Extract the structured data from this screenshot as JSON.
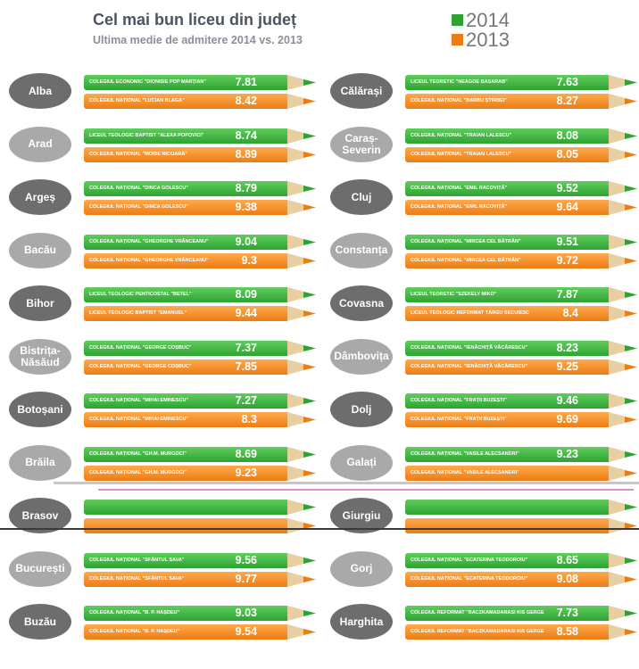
{
  "title": "Cel mai bun liceu din județ",
  "subtitle": "Ultima medie de admitere 2014 vs. 2013",
  "legend": [
    {
      "label": "2014",
      "color": "#2ea332"
    },
    {
      "label": "2013",
      "color": "#ec7d14"
    }
  ],
  "chart_data": {
    "type": "bar",
    "title": "Cel mai bun liceu din județ",
    "subtitle": "Ultima medie de admitere 2014 vs. 2013",
    "categories": [
      "Alba",
      "Arad",
      "Argeș",
      "Bacău",
      "Bihor",
      "Bistrița-Năsăud",
      "Botoșani",
      "Brăila",
      "Brasov",
      "București",
      "Buzău",
      "Călărași",
      "Caraș-Severin",
      "Cluj",
      "Constanța",
      "Covasna",
      "Dâmbovița",
      "Dolj",
      "Galați",
      "Giurgiu",
      "Gorj",
      "Harghita"
    ],
    "series": [
      {
        "name": "2014",
        "color": "#2ea332",
        "values": [
          7.81,
          8.74,
          8.79,
          9.04,
          8.09,
          7.37,
          7.27,
          8.69,
          null,
          9.56,
          9.03,
          7.63,
          8.08,
          9.52,
          9.51,
          7.87,
          8.23,
          9.46,
          9.23,
          null,
          8.65,
          7.73
        ]
      },
      {
        "name": "2013",
        "color": "#ec7d14",
        "values": [
          8.42,
          8.89,
          9.38,
          9.3,
          9.44,
          7.85,
          8.3,
          9.23,
          null,
          9.77,
          9.54,
          8.27,
          8.05,
          9.64,
          9.72,
          8.4,
          9.25,
          9.69,
          null,
          null,
          9.08,
          8.58
        ]
      }
    ],
    "value_labels": {
      "2014": [
        "7.81",
        "8.74",
        "8.79",
        "9.04",
        "8.09",
        "7.37",
        "7.27",
        "8.69",
        "",
        "9.56",
        "9.03",
        "7.63",
        "8.08",
        "9.52",
        "9.51",
        "7.87",
        "8.23",
        "9.46",
        "9.23",
        "",
        "8.65",
        "7.73"
      ],
      "2013": [
        "8.42",
        "8.89",
        "9.38",
        "9.3",
        "9.44",
        "7.85",
        "8.3",
        "9.23",
        "",
        "9.77",
        "9.54",
        "8.27",
        "8.05",
        "9.64",
        "9.72",
        "8.4",
        "9.25",
        "9.69",
        "",
        "",
        "9.08",
        "8.58"
      ]
    },
    "schools": {
      "2014": [
        "COLEGIUL ECONOMIC \"DIONISIE POP MARȚIAN\"",
        "LICEUL TEOLOGIC BAPTIST \"ALEXA POPOVICI\"",
        "COLEGIUL NAȚIONAL \"DINCA GOLESCU\"",
        "COLEGIUL NAȚIONAL \"GHEORGHE VRĂNCEANU\"",
        "LICEUL TEOLOGIC PENTICOSTAL \"BETEL\"",
        "COLEGIUL NAȚIONAL \"GEORGE COȘBUC\"",
        "COLEGIUL NAȚIONAL \"MIHAI EMINESCU\"",
        "COLEGIUL NAȚIONAL \"GH.M. MURGOCI\"",
        "",
        "COLEGIUL NAȚIONAL \"SFÂNTUL SAVA\"",
        "COLEGIUL NAȚIONAL \"B. P. HAȘDEU\"",
        "LICEUL TEORETIC \"NEAGOE BASARAB\"",
        "COLEGIUL NAȚIONAL \"TRAIAN LALESCU\"",
        "COLEGIUL NAȚIONAL \"EMIL RACOVIȚĂ\"",
        "COLEGIUL NAȚIONAL \"MIRCEA CEL BĂTRÂN\"",
        "LICEUL TEORETIC \"SZEKELY MIKO\"",
        "COLEGIUL NAȚIONAL \"IENĂCHIȚĂ VĂCĂRESCU\"",
        "COLEGIUL NAȚIONAL \"FRAȚII BUZEȘTI\"",
        "COLEGIUL NAȚIONAL \"VASILE ALECSANDRI\"",
        "",
        "COLEGIUL NAȚIONAL \"ECATERINA TEODOROIU\"",
        "COLEGIUL REFORMAT \"BACZKAMADARASI KIS GERGELY\""
      ],
      "2013": [
        "COLEGIUL NAȚIONAL \"LUCIAN BLAGA\"",
        "COLEGIUL NAȚIONAL \"MOISE NICOARĂ\"",
        "COLEGIUL NAȚIONAL \"DINCA GOLESCU\"",
        "COLEGIUL NAȚIONAL \"GHEORGHE VRĂNCEANU\"",
        "LICEUL TEOLOGIC BAPTIST \"EMANUEL\"",
        "COLEGIUL NAȚIONAL \"GEORGE COȘBUC\"",
        "COLEGIUL NAȚIONAL \"MIHAI EMINESCU\"",
        "COLEGIUL NAȚIONAL \"GH.M. MURGOCI\"",
        "",
        "COLEGIUL NAȚIONAL \"SFÂNTUL SAVA\"",
        "COLEGIUL NAȚIONAL \"B. P. HAȘDEU\"",
        "COLEGIUL NAȚIONAL \"BARBU ȘTIRBEI\"",
        "COLEGIUL NAȚIONAL \"TRAIAN LALESCU\"",
        "COLEGIUL NAȚIONAL \"EMIL RACOVIȚĂ\"",
        "COLEGIUL NAȚIONAL \"MIRCEA CEL BĂTRÂN\"",
        "LICEUL TEOLOGIC REFORMAT TÂRGU SECUIESC",
        "COLEGIUL NAȚIONAL \"IENĂCHIȚĂ VĂCĂRESCU\"",
        "COLEGIUL NAȚIONAL \"FRAȚII BUZEȘTI\"",
        "COLEGIUL NAȚIONAL \"VASILE ALECSANDRI\"",
        "",
        "COLEGIUL NAȚIONAL \"ECATERINA TEODOROIU\"",
        "COLEGIUL REFORMAT \"BACZKAMADARASI KIS GERGELY\""
      ]
    },
    "county_shade": [
      "dark",
      "light",
      "dark",
      "light",
      "dark",
      "light",
      "dark",
      "light",
      "dark",
      "light",
      "dark",
      "dark",
      "light",
      "dark",
      "light",
      "dark",
      "light",
      "dark",
      "light",
      "dark",
      "light",
      "dark"
    ],
    "legend_position": "top-right",
    "grid": false
  }
}
